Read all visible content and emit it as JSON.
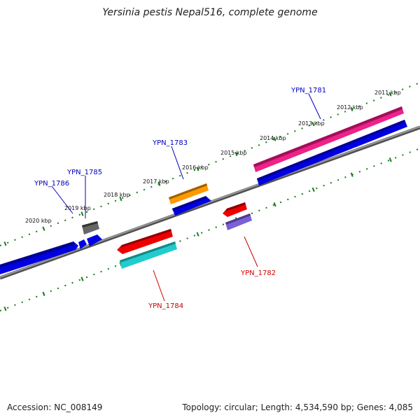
{
  "title": "Yersinia pestis Nepal516, complete genome",
  "footer": {
    "accession": "Accession: NC_008149",
    "summary": "Topology: circular; Length: 4,534,590 bp; Genes: 4,085"
  },
  "colors": {
    "backbone": "#808080",
    "tick": "#1a7a1a",
    "label_forward": "#0000bb",
    "label_reverse": "#cc0000"
  },
  "scale_labels": [
    "2011 kbp",
    "2012 kbp",
    "2013 kbp",
    "2014 kbp",
    "2015 kbp",
    "2016 kbp",
    "2017 kbp",
    "2018 kbp",
    "2019 kbp",
    "2020 kbp"
  ],
  "genes": [
    {
      "label": "YPN_1781",
      "strand": "forward",
      "color": "#0000bb"
    },
    {
      "label": "YPN_1782",
      "strand": "reverse",
      "color": "#cc0000"
    },
    {
      "label": "YPN_1783",
      "strand": "forward",
      "color": "#0000bb"
    },
    {
      "label": "YPN_1784",
      "strand": "reverse",
      "color": "#cc0000"
    },
    {
      "label": "YPN_1785",
      "strand": "forward",
      "color": "#0000bb"
    },
    {
      "label": "YPN_1786",
      "strand": "forward",
      "color": "#0000bb"
    }
  ]
}
